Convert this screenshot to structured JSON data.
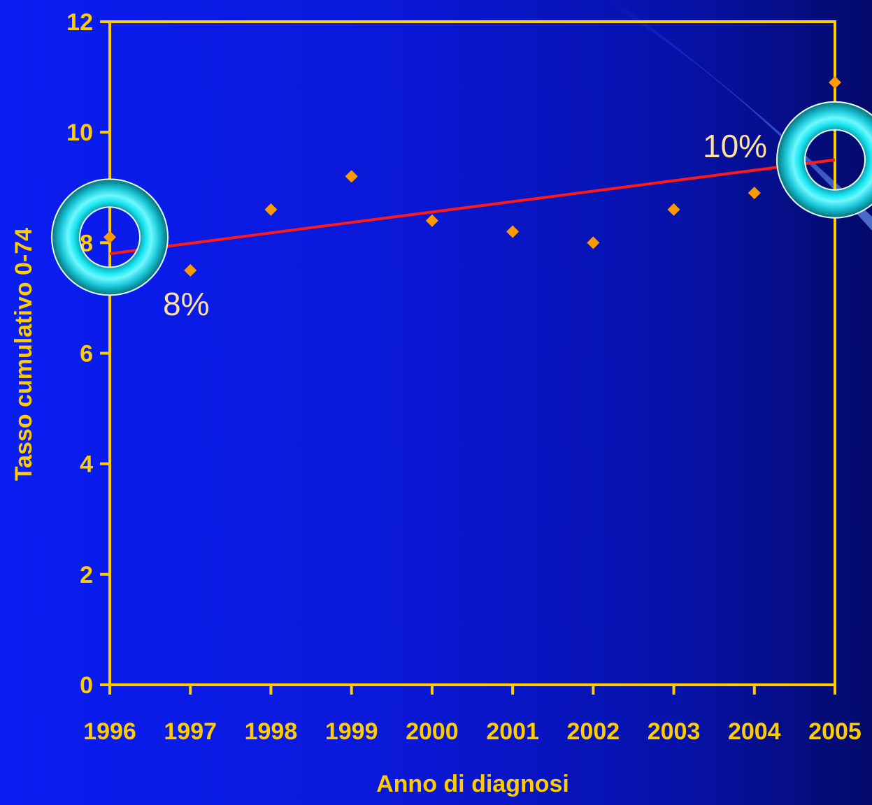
{
  "chart_data": {
    "type": "scatter",
    "xlabel": "Anno di diagnosi",
    "ylabel": "Tasso cumulativo 0-74",
    "x": [
      1996,
      1997,
      1998,
      1999,
      2000,
      2001,
      2002,
      2003,
      2004,
      2005
    ],
    "x_tick_labels": [
      "1996",
      "1997",
      "1998",
      "1999",
      "2000",
      "2001",
      "2002",
      "2003",
      "2004",
      "2005"
    ],
    "y_ticks": [
      0,
      2,
      4,
      6,
      8,
      10,
      12
    ],
    "y_tick_labels": [
      "0",
      "2",
      "4",
      "6",
      "8",
      "10",
      "12"
    ],
    "xlim": [
      1996,
      2005
    ],
    "ylim": [
      0,
      12
    ],
    "grid": false,
    "series": [
      {
        "values": [
          8.1,
          7.5,
          8.6,
          9.2,
          8.4,
          8.2,
          8.0,
          8.6,
          8.9,
          10.9
        ],
        "color": "#ff9900",
        "marker": "diamond"
      }
    ],
    "trendline": {
      "start": [
        1996,
        7.8
      ],
      "end": [
        2005,
        9.5
      ],
      "color": "#ff1a1a"
    },
    "annotations": [
      {
        "text": "8%",
        "x": 1996,
        "y": 8.1
      },
      {
        "text": "10%",
        "x": 2005,
        "y": 9.5
      }
    ],
    "colors": {
      "axis": "#ffcc00",
      "text": "#ffcc00",
      "annotation_text": "#ffe0a0",
      "highlight_ring": "#1de0e0"
    }
  }
}
